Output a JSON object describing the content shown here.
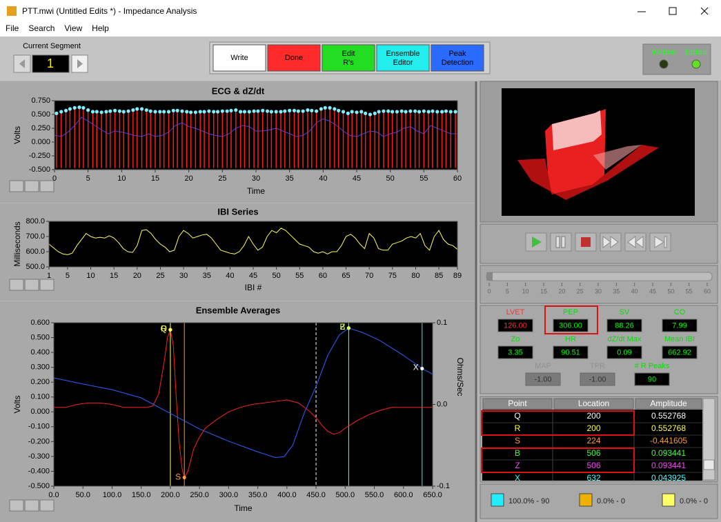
{
  "window": {
    "title": "PTT.mwi (Untitled Edits *) - Impedance Analysis"
  },
  "menu": [
    "File",
    "Search",
    "View",
    "Help"
  ],
  "segment": {
    "label": "Current Segment",
    "value": "1"
  },
  "toolbar": [
    {
      "label": "Write",
      "color": "#ffffff"
    },
    {
      "label": "Done",
      "color": "#ff2a2a"
    },
    {
      "label": "Edit R's",
      "color": "#22dd22"
    },
    {
      "label": "Ensemble Editor",
      "color": "#22eeee"
    },
    {
      "label": "Peak Detection",
      "color": "#2a6aff"
    }
  ],
  "indicators": [
    {
      "label": "Written"
    },
    {
      "label": "Edited"
    }
  ],
  "slider": {
    "ticks": [
      "0",
      "5",
      "10",
      "15",
      "20",
      "25",
      "30",
      "35",
      "40",
      "45",
      "50",
      "55",
      "60"
    ]
  },
  "measures": [
    {
      "label": "LVET",
      "value": "126.00",
      "label_color": "#ff3030",
      "value_color": "#ff3030"
    },
    {
      "label": "PEP",
      "value": "306.00",
      "label_color": "#00e000",
      "value_color": "#00ff00"
    },
    {
      "label": "SV",
      "value": "88.26",
      "label_color": "#00e000",
      "value_color": "#00ff00"
    },
    {
      "label": "CO",
      "value": "7.99",
      "label_color": "#00e000",
      "value_color": "#00ff00"
    },
    {
      "label": "Zo",
      "value": "3.35",
      "label_color": "#00e000",
      "value_color": "#00ff00"
    },
    {
      "label": "HR",
      "value": "90.51",
      "label_color": "#00e000",
      "value_color": "#00ff00"
    },
    {
      "label": "dZ/dt Max",
      "value": "0.09",
      "label_color": "#00e000",
      "value_color": "#00ff00"
    },
    {
      "label": "Mean IBI",
      "value": "662.92",
      "label_color": "#00e000",
      "value_color": "#00ff00"
    },
    {
      "label": "MAP",
      "value": "-1.00",
      "label_color": "#909090",
      "value_color": "#303030"
    },
    {
      "label": "TPR",
      "value": "-1.00",
      "label_color": "#909090",
      "value_color": "#303030"
    },
    {
      "label": "# R Peaks",
      "value": "90",
      "label_color": "#00e000",
      "value_color": "#00ff00"
    }
  ],
  "table": {
    "columns": [
      "Point",
      "Location",
      "Amplitude"
    ],
    "rows": [
      {
        "cells": [
          "Q",
          "200",
          "0.552768"
        ],
        "color": "#ffffff"
      },
      {
        "cells": [
          "R",
          "200",
          "0.552768"
        ],
        "color": "#ffff40"
      },
      {
        "cells": [
          "S",
          "224",
          "-0.441605"
        ],
        "color": "#ff9a30"
      },
      {
        "cells": [
          "B",
          "506",
          "0.093441"
        ],
        "color": "#40ff40"
      },
      {
        "cells": [
          "Z",
          "506",
          "0.093441"
        ],
        "color": "#ff40ff"
      },
      {
        "cells": [
          "X",
          "632",
          "0.043925"
        ],
        "color": "#40ffff"
      }
    ]
  },
  "legend": [
    {
      "color": "#22eeff",
      "label": "100.0% - 90"
    },
    {
      "color": "#f0b000",
      "label": "0.0% - 0"
    },
    {
      "color": "#ffff66",
      "label": "0.0% - 0"
    }
  ],
  "chart_data": [
    {
      "type": "line",
      "title": "ECG & dZ/dt",
      "y_label": "Volts",
      "x_label": "Time",
      "xlim": [
        0,
        60
      ],
      "xticks": [
        0,
        5,
        10,
        15,
        20,
        25,
        30,
        35,
        40,
        45,
        50,
        55,
        60
      ],
      "ylim": [
        -0.5,
        0.75
      ],
      "yticks": [
        {
          "value": 0.75,
          "label": "0.750"
        },
        {
          "value": 0.5,
          "label": "0.500"
        },
        {
          "value": 0.25,
          "label": "0.250"
        },
        {
          "value": 0,
          "label": "0.000"
        },
        {
          "value": -0.25,
          "label": "-0.250"
        },
        {
          "value": -0.5,
          "label": "-0.500"
        }
      ],
      "series": [
        {
          "kind": "line",
          "color": "#3050ff",
          "x": [
            0,
            1,
            2,
            3,
            4,
            5,
            6,
            7,
            8,
            9,
            10,
            11,
            12,
            13,
            14,
            15,
            16,
            17,
            18,
            19,
            20,
            21,
            22,
            23,
            24,
            25,
            26,
            27,
            28,
            29,
            30,
            31,
            32,
            33,
            34,
            35,
            36,
            37,
            38,
            39,
            40,
            41,
            42,
            43,
            44,
            45,
            46,
            47,
            48,
            49,
            50,
            51,
            52,
            53,
            54,
            55,
            56,
            57,
            58,
            59,
            60
          ],
          "values": [
            0.12,
            0.1,
            0.18,
            0.3,
            0.45,
            0.38,
            0.3,
            0.22,
            0.15,
            0.2,
            0.18,
            0.15,
            0.12,
            0.1,
            0.15,
            0.1,
            0.12,
            0.18,
            0.3,
            0.35,
            0.28,
            0.25,
            0.2,
            0.15,
            0.12,
            0.1,
            0.15,
            0.25,
            0.3,
            0.28,
            0.2,
            0.2,
            0.22,
            0.25,
            0.2,
            0.15,
            0.1,
            0.12,
            0.2,
            0.35,
            0.42,
            0.38,
            0.3,
            0.2,
            0.12,
            0.1,
            0.15,
            0.2,
            0.18,
            0.1,
            0.15,
            0.18,
            0.25,
            0.28,
            0.2,
            0.15,
            0.3,
            0.25,
            0.2,
            0.15,
            0.15
          ]
        },
        {
          "kind": "spikes",
          "color": "#ff1a1a",
          "marker_color": "#80f0ff",
          "trough": -0.47,
          "x": [
            0.3,
            1.0,
            1.7,
            2.3,
            3.0,
            3.7,
            4.3,
            5.0,
            5.7,
            6.3,
            7.0,
            7.7,
            8.3,
            9.0,
            9.7,
            10.3,
            11.0,
            11.7,
            12.3,
            13.0,
            13.7,
            14.3,
            15.0,
            15.7,
            16.3,
            17.0,
            17.7,
            18.3,
            19.0,
            19.7,
            20.3,
            21.0,
            21.7,
            22.3,
            23.0,
            23.7,
            24.3,
            25.0,
            25.7,
            26.3,
            27.0,
            27.7,
            28.3,
            29.0,
            29.7,
            30.3,
            31.0,
            31.7,
            32.3,
            33.0,
            33.7,
            34.3,
            35.0,
            35.7,
            36.3,
            37.0,
            37.7,
            38.3,
            39.0,
            39.7,
            40.3,
            41.0,
            41.7,
            42.3,
            43.0,
            43.7,
            44.3,
            45.0,
            45.7,
            46.3,
            47.0,
            47.7,
            48.3,
            49.0,
            49.7,
            50.3,
            51.0,
            51.7,
            52.3,
            53.0,
            53.7,
            54.3,
            55.0,
            55.7,
            56.3,
            57.0,
            57.7,
            58.3,
            59.0,
            59.7
          ],
          "values": [
            0.52,
            0.55,
            0.57,
            0.6,
            0.62,
            0.63,
            0.62,
            0.58,
            0.55,
            0.55,
            0.54,
            0.55,
            0.56,
            0.57,
            0.56,
            0.55,
            0.56,
            0.58,
            0.6,
            0.6,
            0.58,
            0.56,
            0.55,
            0.55,
            0.55,
            0.55,
            0.57,
            0.57,
            0.56,
            0.55,
            0.54,
            0.54,
            0.55,
            0.55,
            0.56,
            0.55,
            0.55,
            0.56,
            0.56,
            0.57,
            0.58,
            0.55,
            0.55,
            0.55,
            0.56,
            0.56,
            0.57,
            0.56,
            0.55,
            0.55,
            0.55,
            0.56,
            0.57,
            0.57,
            0.56,
            0.56,
            0.58,
            0.57,
            0.56,
            0.6,
            0.62,
            0.62,
            0.6,
            0.57,
            0.55,
            0.52,
            0.55,
            0.54,
            0.55,
            0.52,
            0.5,
            0.52,
            0.55,
            0.56,
            0.56,
            0.55,
            0.55,
            0.56,
            0.55,
            0.56,
            0.56,
            0.55,
            0.56,
            0.55,
            0.56,
            0.55,
            0.55,
            0.56,
            0.55,
            0.55
          ]
        }
      ]
    },
    {
      "type": "line",
      "title": "IBI Series",
      "y_label": "Milliseconds",
      "x_label": "IBI #",
      "xlim": [
        1,
        89
      ],
      "xticks": [
        1,
        5,
        10,
        15,
        20,
        25,
        30,
        35,
        40,
        45,
        50,
        55,
        60,
        65,
        70,
        75,
        80,
        85,
        89
      ],
      "ylim": [
        500,
        800
      ],
      "yticks": [
        {
          "value": 800,
          "label": "800.0"
        },
        {
          "value": 700,
          "label": "700.0"
        },
        {
          "value": 600,
          "label": "600.0"
        },
        {
          "value": 500,
          "label": "500.0"
        }
      ],
      "series": [
        {
          "kind": "line",
          "color": "#ffff60",
          "x": [
            1,
            2,
            3,
            4,
            5,
            6,
            7,
            8,
            9,
            10,
            11,
            12,
            13,
            14,
            15,
            16,
            17,
            18,
            19,
            20,
            21,
            22,
            23,
            24,
            25,
            26,
            27,
            28,
            29,
            30,
            31,
            32,
            33,
            34,
            35,
            36,
            37,
            38,
            39,
            40,
            41,
            42,
            43,
            44,
            45,
            46,
            47,
            48,
            49,
            50,
            51,
            52,
            53,
            54,
            55,
            56,
            57,
            58,
            59,
            60,
            61,
            62,
            63,
            64,
            65,
            66,
            67,
            68,
            69,
            70,
            71,
            72,
            73,
            74,
            75,
            76,
            77,
            78,
            79,
            80,
            81,
            82,
            83,
            84,
            85,
            86,
            87,
            88,
            89
          ],
          "values": [
            650,
            625,
            600,
            585,
            580,
            590,
            640,
            680,
            720,
            700,
            690,
            695,
            690,
            705,
            690,
            660,
            620,
            600,
            595,
            640,
            740,
            745,
            720,
            680,
            650,
            630,
            600,
            610,
            700,
            740,
            720,
            690,
            700,
            710,
            715,
            690,
            650,
            610,
            600,
            590,
            585,
            600,
            640,
            700,
            650,
            610,
            630,
            700,
            740,
            725,
            755,
            740,
            710,
            680,
            650,
            640,
            630,
            600,
            590,
            600,
            585,
            600,
            600,
            640,
            700,
            715,
            690,
            650,
            620,
            720,
            690,
            620,
            610,
            610,
            650,
            660,
            670,
            690,
            700,
            690,
            720,
            640,
            610,
            700,
            740,
            680,
            650,
            640,
            615
          ]
        }
      ]
    },
    {
      "type": "line",
      "title": "Ensemble Averages",
      "y_label": "Volts",
      "x_label": "Time",
      "y2_label": "Ohms/Sec",
      "xlim": [
        0,
        650
      ],
      "xticks": [
        {
          "value": 0,
          "label": "0.0"
        },
        {
          "value": 50,
          "label": "50.0"
        },
        {
          "value": 100,
          "label": "100.0"
        },
        {
          "value": 150,
          "label": "150.0"
        },
        {
          "value": 200,
          "label": "200.0"
        },
        {
          "value": 250,
          "label": "250.0"
        },
        {
          "value": 300,
          "label": "300.0"
        },
        {
          "value": 350,
          "label": "350.0"
        },
        {
          "value": 400,
          "label": "400.0"
        },
        {
          "value": 450,
          "label": "450.0"
        },
        {
          "value": 500,
          "label": "500.0"
        },
        {
          "value": 550,
          "label": "550.0"
        },
        {
          "value": 600,
          "label": "600.0"
        },
        {
          "value": 650,
          "label": "650.0"
        }
      ],
      "ylim": [
        -0.5,
        0.6
      ],
      "yticks": [
        {
          "value": 0.6,
          "label": "0.600"
        },
        {
          "value": 0.5,
          "label": "0.500"
        },
        {
          "value": 0.4,
          "label": "0.400"
        },
        {
          "value": 0.3,
          "label": "0.300"
        },
        {
          "value": 0.2,
          "label": "0.200"
        },
        {
          "value": 0.1,
          "label": "0.100"
        },
        {
          "value": 0,
          "label": "0.000"
        },
        {
          "value": -0.1,
          "label": "-0.100"
        },
        {
          "value": -0.2,
          "label": "-0.200"
        },
        {
          "value": -0.3,
          "label": "-0.300"
        },
        {
          "value": -0.4,
          "label": "-0.400"
        },
        {
          "value": -0.5,
          "label": "-0.500"
        }
      ],
      "y2lim": [
        -0.1,
        0.1
      ],
      "y2ticks": [
        0.1,
        {
          "value": 0,
          "label": "0.0"
        },
        -0.1
      ],
      "markers": [
        {
          "x": 200,
          "color": "#ffff80"
        },
        {
          "x": 224,
          "color": "#ff9a40"
        },
        {
          "x": 450,
          "color": "#ffffff",
          "dashed": true
        },
        {
          "x": 506,
          "color": "#80ff80"
        },
        {
          "x": 632,
          "color": "#40e8e8"
        }
      ],
      "series": [
        {
          "kind": "line",
          "color": "#ff2020",
          "x": [
            0,
            20,
            40,
            60,
            80,
            100,
            120,
            140,
            160,
            170,
            180,
            190,
            195,
            200,
            205,
            210,
            215,
            220,
            224,
            230,
            240,
            250,
            260,
            280,
            300,
            320,
            340,
            360,
            380,
            400,
            420,
            440,
            450,
            460,
            470,
            480,
            490,
            500,
            520,
            540,
            560,
            580,
            600,
            620,
            650
          ],
          "values": [
            0.03,
            0.03,
            0.05,
            0.06,
            0.06,
            0.05,
            0.03,
            0.03,
            0.03,
            0.04,
            0.12,
            0.35,
            0.5,
            0.553,
            0.45,
            0.1,
            -0.2,
            -0.38,
            -0.442,
            -0.4,
            -0.25,
            -0.17,
            -0.11,
            -0.05,
            0.0,
            0.03,
            0.05,
            0.06,
            0.07,
            0.08,
            0.06,
            0.0,
            -0.04,
            -0.09,
            -0.13,
            -0.15,
            -0.14,
            -0.11,
            -0.06,
            -0.02,
            0.01,
            0.03,
            0.03,
            0.03,
            0.03
          ]
        },
        {
          "kind": "line",
          "color": "#3060ff",
          "axis": "y2",
          "x": [
            0,
            50,
            100,
            150,
            200,
            250,
            300,
            350,
            380,
            395,
            410,
            430,
            450,
            470,
            490,
            506,
            530,
            560,
            600,
            632,
            650
          ],
          "values": [
            0.0325,
            0.025,
            0.018,
            0.008,
            -0.011,
            -0.03,
            -0.045,
            -0.058,
            -0.065,
            -0.064,
            -0.05,
            -0.01,
            0.022,
            0.06,
            0.085,
            0.0934,
            0.088,
            0.078,
            0.06,
            0.0439,
            0.037
          ]
        }
      ],
      "points": [
        {
          "label": "Q",
          "x": 200,
          "y": 0.552768,
          "color": "#ffff60"
        },
        {
          "label": "R",
          "x": 200,
          "y": 0.552768,
          "color": "#ffff60"
        },
        {
          "label": "S",
          "x": 224,
          "y": -0.441605,
          "color": "#ffa040"
        },
        {
          "label": "B",
          "x": 506,
          "y": 0.093441,
          "axis": "y2",
          "color": "#d0ff60"
        },
        {
          "label": "Z",
          "x": 506,
          "y": 0.093441,
          "axis": "y2",
          "color": "#d0ff60"
        },
        {
          "label": "X",
          "x": 632,
          "y": 0.043925,
          "axis": "y2",
          "color": "#ffffff"
        }
      ]
    }
  ]
}
